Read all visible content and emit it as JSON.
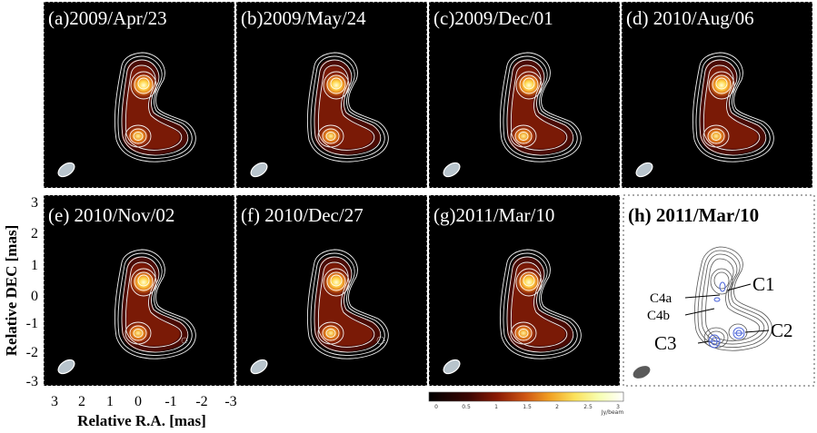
{
  "figure": {
    "panels": [
      {
        "label": "(a)2009/Apr/23"
      },
      {
        "label": "(b)2009/May/24"
      },
      {
        "label": "(c)2009/Dec/01"
      },
      {
        "label": "(d) 2010/Aug/06"
      },
      {
        "label": "(e) 2010/Nov/02"
      },
      {
        "label": "(f) 2010/Dec/27"
      },
      {
        "label": "(g)2011/Mar/10"
      },
      {
        "label": "(h) 2011/Mar/10"
      }
    ],
    "components": [
      "C1",
      "C2",
      "C3",
      "C4a",
      "C4b"
    ],
    "y_axis": {
      "label": "Relative DEC [mas]",
      "ticks": [
        "3",
        "2",
        "1",
        "0",
        "-1",
        "-2",
        "-3"
      ]
    },
    "x_axis": {
      "label": "Relative R.A. [mas]",
      "ticks": [
        "3",
        "2",
        "1",
        "0",
        "-1",
        "-2",
        "-3"
      ]
    },
    "colorbar": {
      "ticks": [
        "0",
        "0.5",
        "1",
        "1.5",
        "2",
        "2.5",
        "3"
      ],
      "unit": "Jy/beam"
    }
  }
}
